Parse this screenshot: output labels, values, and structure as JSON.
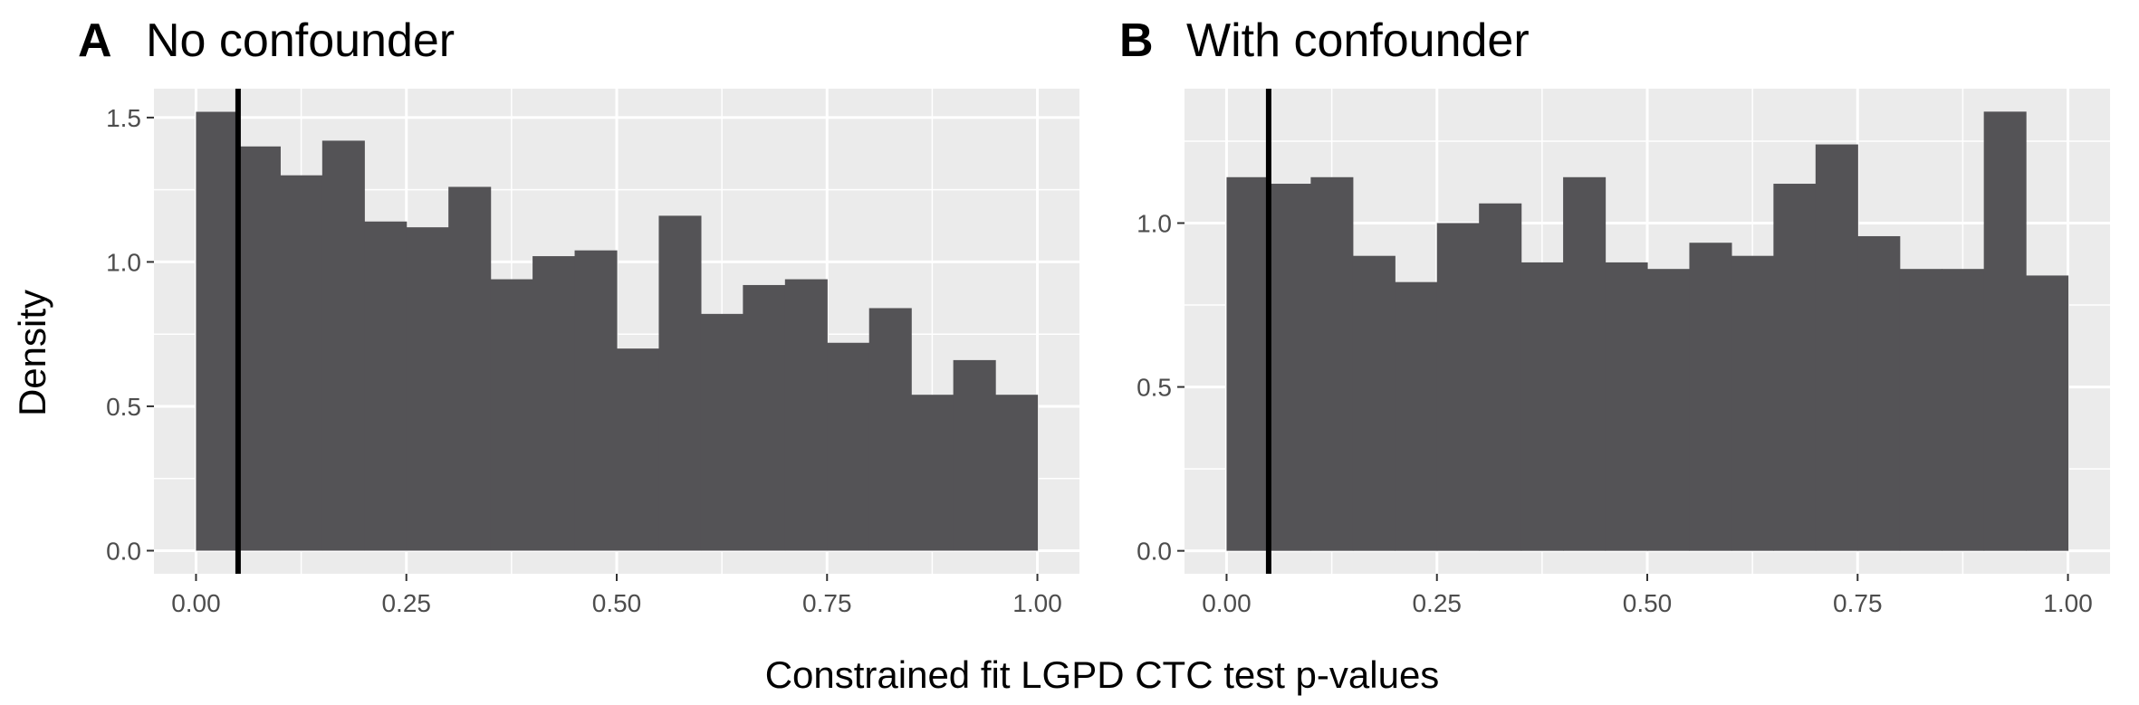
{
  "chart_data": [
    {
      "type": "bar",
      "panel_letter": "A",
      "title": "No confounder",
      "xlabel": "Constrained fit LGPD CTC test p-values",
      "ylabel": "Density",
      "bin_width": 0.05,
      "bins": [
        0.0,
        0.05,
        0.1,
        0.15,
        0.2,
        0.25,
        0.3,
        0.35,
        0.4,
        0.45,
        0.5,
        0.55,
        0.6,
        0.65,
        0.7,
        0.75,
        0.8,
        0.85,
        0.9,
        0.95
      ],
      "values": [
        1.52,
        1.4,
        1.3,
        1.42,
        1.14,
        1.12,
        1.26,
        0.94,
        1.02,
        1.04,
        0.7,
        1.16,
        0.82,
        0.92,
        0.94,
        0.72,
        0.84,
        0.54,
        0.66,
        0.54
      ],
      "xlim": [
        -0.05,
        1.05
      ],
      "ylim": [
        -0.08,
        1.6
      ],
      "xticks": [
        0,
        0.25,
        0.5,
        0.75,
        1
      ],
      "xtick_labels": [
        "0.00",
        "0.25",
        "0.50",
        "0.75",
        "1.00"
      ],
      "yticks": [
        0,
        0.5,
        1,
        1.5
      ],
      "ytick_labels": [
        "0.0",
        "0.5",
        "1.0",
        "1.5"
      ],
      "vline": 0.05,
      "bar_color": "#545356",
      "panel_bg": "#ebebeb",
      "grid": true
    },
    {
      "type": "bar",
      "panel_letter": "B",
      "title": "With confounder",
      "xlabel": "Constrained fit LGPD CTC test p-values",
      "ylabel": "Density",
      "bin_width": 0.05,
      "bins": [
        0.0,
        0.05,
        0.1,
        0.15,
        0.2,
        0.25,
        0.3,
        0.35,
        0.4,
        0.45,
        0.5,
        0.55,
        0.6,
        0.65,
        0.7,
        0.75,
        0.8,
        0.85,
        0.9,
        0.95
      ],
      "values": [
        1.14,
        1.12,
        1.14,
        0.9,
        0.82,
        1.0,
        1.06,
        0.88,
        1.14,
        0.88,
        0.86,
        0.94,
        0.9,
        1.12,
        1.24,
        0.96,
        0.86,
        0.86,
        1.34,
        0.84
      ],
      "xlim": [
        -0.05,
        1.05
      ],
      "ylim": [
        -0.07,
        1.41
      ],
      "xticks": [
        0,
        0.25,
        0.5,
        0.75,
        1
      ],
      "xtick_labels": [
        "0.00",
        "0.25",
        "0.50",
        "0.75",
        "1.00"
      ],
      "yticks": [
        0,
        0.5,
        1
      ],
      "ytick_labels": [
        "0.0",
        "0.5",
        "1.0"
      ],
      "vline": 0.05,
      "bar_color": "#545356",
      "panel_bg": "#ebebeb",
      "grid": true
    }
  ],
  "shared_xlabel": "Constrained fit LGPD CTC test p-values",
  "shared_ylabel": "Density"
}
